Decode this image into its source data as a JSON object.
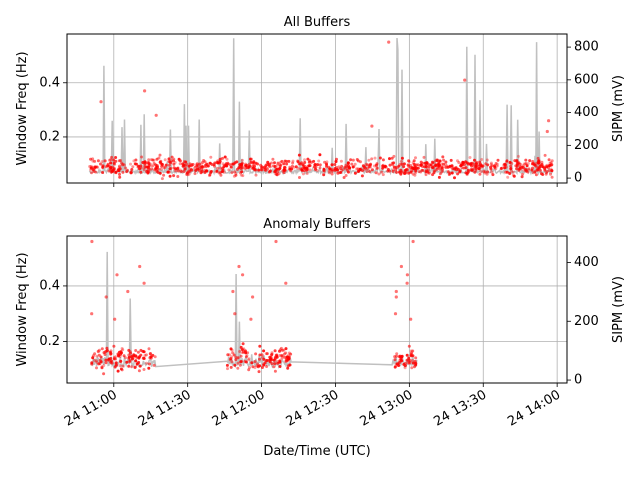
{
  "chart_data": [
    {
      "type": "scatter",
      "title": "All Buffers",
      "ylabel": "Window Freq (Hz)",
      "y2label": "SIPM (mV)",
      "xlim": [
        "24 10:41",
        "24 14:04"
      ],
      "ylim": [
        0.03,
        0.58
      ],
      "y2lim": [
        -30,
        880
      ],
      "x_ticks": [
        "24 11:00",
        "24 11:30",
        "24 12:00",
        "24 12:30",
        "24 13:00",
        "24 13:30",
        "24 14:00"
      ],
      "y_ticks": [
        "0.2",
        "0.4"
      ],
      "y2_ticks": [
        "0",
        "200",
        "400",
        "600",
        "800"
      ],
      "grid": true,
      "series": [
        {
          "role": "sipm",
          "axis": "right",
          "color": "#c0c0c0",
          "style": "line",
          "segments": [
            [
              "24 10:50",
              "24 13:58"
            ]
          ],
          "baseline": 30,
          "spike_max": 860
        },
        {
          "role": "freq",
          "axis": "left",
          "color": "#ff0000",
          "style": "points",
          "segments": [
            [
              "24 10:50",
              "24 13:58"
            ]
          ],
          "center": 0.09,
          "spread": 0.03,
          "outliers": [
            0.55,
            0.37,
            0.41,
            0.33,
            0.24,
            0.22,
            0.28,
            0.26
          ]
        }
      ]
    },
    {
      "type": "scatter",
      "title": "Anomaly Buffers",
      "ylabel": "Window Freq (Hz)",
      "y2label": "SIPM (mV)",
      "xlabel": "Date/Time (UTC)",
      "xlim": [
        "24 10:41",
        "24 14:04"
      ],
      "ylim": [
        0.05,
        0.58
      ],
      "y2lim": [
        -10,
        490
      ],
      "x_ticks": [
        "24 11:00",
        "24 11:30",
        "24 12:00",
        "24 12:30",
        "24 13:00",
        "24 13:30",
        "24 14:00"
      ],
      "y_ticks": [
        "0.2",
        "0.4"
      ],
      "y2_ticks": [
        "0",
        "200",
        "400"
      ],
      "grid": true,
      "series": [
        {
          "role": "sipm",
          "axis": "right",
          "color": "#c0c0c0",
          "style": "line",
          "segments": [
            [
              "24 10:51",
              "24 11:17"
            ],
            [
              "24 11:46",
              "24 12:12"
            ],
            [
              "24 12:53",
              "24 13:03"
            ]
          ],
          "baseline": 45,
          "spike_max": 470
        },
        {
          "role": "freq",
          "axis": "left",
          "color": "#ff0000",
          "style": "points",
          "segments": [
            [
              "24 10:51",
              "24 11:17"
            ],
            [
              "24 11:46",
              "24 12:12"
            ],
            [
              "24 12:53",
              "24 13:03"
            ]
          ],
          "center": 0.14,
          "spread": 0.04,
          "outliers": [
            0.47,
            0.41,
            0.38,
            0.36,
            0.44,
            0.56,
            0.28,
            0.3
          ]
        }
      ]
    }
  ]
}
